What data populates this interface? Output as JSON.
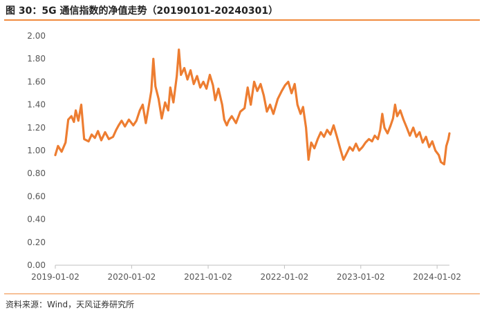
{
  "title": "图 30：5G 通信指数的净值走势（20190101-20240301）",
  "source": "资料来源：Wind，天风证券研究所",
  "colors": {
    "line": "#ed7d31",
    "accent_rule": "#f08a3c",
    "axis": "#bfbfbf",
    "text": "#555555"
  },
  "chart_data": {
    "type": "line",
    "title": "",
    "xlabel": "",
    "ylabel": "",
    "ylim": [
      0,
      2.0
    ],
    "xlim": [
      "2019-01-02",
      "2024-03-01"
    ],
    "yticks": [
      "0.00",
      "0.20",
      "0.40",
      "0.60",
      "0.80",
      "1.00",
      "1.20",
      "1.40",
      "1.60",
      "1.80",
      "2.00"
    ],
    "xticks": [
      "2019-01-02",
      "2020-01-02",
      "2021-01-02",
      "2022-01-02",
      "2023-01-02",
      "2024-01-02"
    ],
    "grid": false,
    "legend": "none",
    "series": [
      {
        "name": "",
        "points": [
          [
            "2019-01-02",
            0.96
          ],
          [
            "2019-01-15",
            1.04
          ],
          [
            "2019-02-01",
            0.99
          ],
          [
            "2019-02-20",
            1.07
          ],
          [
            "2019-03-05",
            1.27
          ],
          [
            "2019-03-20",
            1.3
          ],
          [
            "2019-04-01",
            1.25
          ],
          [
            "2019-04-10",
            1.35
          ],
          [
            "2019-04-22",
            1.26
          ],
          [
            "2019-05-06",
            1.4
          ],
          [
            "2019-05-20",
            1.1
          ],
          [
            "2019-06-10",
            1.08
          ],
          [
            "2019-06-25",
            1.14
          ],
          [
            "2019-07-10",
            1.11
          ],
          [
            "2019-07-25",
            1.17
          ],
          [
            "2019-08-10",
            1.09
          ],
          [
            "2019-08-28",
            1.16
          ],
          [
            "2019-09-15",
            1.1
          ],
          [
            "2019-10-05",
            1.12
          ],
          [
            "2019-10-20",
            1.18
          ],
          [
            "2019-11-01",
            1.22
          ],
          [
            "2019-11-15",
            1.26
          ],
          [
            "2019-12-01",
            1.21
          ],
          [
            "2019-12-20",
            1.27
          ],
          [
            "2020-01-10",
            1.22
          ],
          [
            "2020-01-25",
            1.26
          ],
          [
            "2020-02-10",
            1.35
          ],
          [
            "2020-02-24",
            1.4
          ],
          [
            "2020-03-10",
            1.24
          ],
          [
            "2020-03-25",
            1.4
          ],
          [
            "2020-04-05",
            1.52
          ],
          [
            "2020-04-15",
            1.8
          ],
          [
            "2020-04-25",
            1.56
          ],
          [
            "2020-05-10",
            1.45
          ],
          [
            "2020-05-25",
            1.28
          ],
          [
            "2020-06-10",
            1.42
          ],
          [
            "2020-06-25",
            1.35
          ],
          [
            "2020-07-05",
            1.55
          ],
          [
            "2020-07-20",
            1.42
          ],
          [
            "2020-08-05",
            1.65
          ],
          [
            "2020-08-15",
            1.88
          ],
          [
            "2020-08-25",
            1.66
          ],
          [
            "2020-09-10",
            1.72
          ],
          [
            "2020-09-25",
            1.62
          ],
          [
            "2020-10-10",
            1.7
          ],
          [
            "2020-10-25",
            1.58
          ],
          [
            "2020-11-10",
            1.65
          ],
          [
            "2020-11-25",
            1.55
          ],
          [
            "2020-12-10",
            1.6
          ],
          [
            "2020-12-25",
            1.54
          ],
          [
            "2021-01-10",
            1.66
          ],
          [
            "2021-01-25",
            1.57
          ],
          [
            "2021-02-05",
            1.44
          ],
          [
            "2021-02-20",
            1.54
          ],
          [
            "2021-03-10",
            1.4
          ],
          [
            "2021-03-20",
            1.27
          ],
          [
            "2021-04-01",
            1.22
          ],
          [
            "2021-04-10",
            1.26
          ],
          [
            "2021-04-25",
            1.3
          ],
          [
            "2021-05-15",
            1.24
          ],
          [
            "2021-06-05",
            1.34
          ],
          [
            "2021-06-25",
            1.37
          ],
          [
            "2021-07-10",
            1.55
          ],
          [
            "2021-07-25",
            1.4
          ],
          [
            "2021-08-10",
            1.6
          ],
          [
            "2021-08-25",
            1.52
          ],
          [
            "2021-09-10",
            1.58
          ],
          [
            "2021-09-25",
            1.48
          ],
          [
            "2021-10-10",
            1.34
          ],
          [
            "2021-10-25",
            1.4
          ],
          [
            "2021-11-10",
            1.32
          ],
          [
            "2021-12-01",
            1.45
          ],
          [
            "2021-12-20",
            1.52
          ],
          [
            "2022-01-05",
            1.57
          ],
          [
            "2022-01-20",
            1.6
          ],
          [
            "2022-02-05",
            1.5
          ],
          [
            "2022-02-20",
            1.58
          ],
          [
            "2022-03-05",
            1.4
          ],
          [
            "2022-03-20",
            1.32
          ],
          [
            "2022-04-01",
            1.38
          ],
          [
            "2022-04-15",
            1.2
          ],
          [
            "2022-04-27",
            0.92
          ],
          [
            "2022-05-10",
            1.07
          ],
          [
            "2022-05-25",
            1.02
          ],
          [
            "2022-06-10",
            1.1
          ],
          [
            "2022-06-25",
            1.16
          ],
          [
            "2022-07-10",
            1.12
          ],
          [
            "2022-07-25",
            1.18
          ],
          [
            "2022-08-10",
            1.14
          ],
          [
            "2022-08-25",
            1.22
          ],
          [
            "2022-09-10",
            1.12
          ],
          [
            "2022-09-25",
            1.02
          ],
          [
            "2022-10-11",
            0.92
          ],
          [
            "2022-10-25",
            0.97
          ],
          [
            "2022-11-10",
            1.03
          ],
          [
            "2022-11-25",
            1.0
          ],
          [
            "2022-12-10",
            1.06
          ],
          [
            "2022-12-25",
            1.0
          ],
          [
            "2023-01-10",
            1.03
          ],
          [
            "2023-01-25",
            1.07
          ],
          [
            "2023-02-10",
            1.1
          ],
          [
            "2023-02-25",
            1.08
          ],
          [
            "2023-03-10",
            1.13
          ],
          [
            "2023-03-25",
            1.1
          ],
          [
            "2023-04-05",
            1.18
          ],
          [
            "2023-04-15",
            1.32
          ],
          [
            "2023-04-25",
            1.2
          ],
          [
            "2023-05-10",
            1.15
          ],
          [
            "2023-05-25",
            1.22
          ],
          [
            "2023-06-05",
            1.28
          ],
          [
            "2023-06-15",
            1.4
          ],
          [
            "2023-06-25",
            1.3
          ],
          [
            "2023-07-10",
            1.35
          ],
          [
            "2023-07-25",
            1.27
          ],
          [
            "2023-08-10",
            1.2
          ],
          [
            "2023-08-25",
            1.13
          ],
          [
            "2023-09-10",
            1.2
          ],
          [
            "2023-09-25",
            1.12
          ],
          [
            "2023-10-10",
            1.16
          ],
          [
            "2023-10-25",
            1.07
          ],
          [
            "2023-11-10",
            1.12
          ],
          [
            "2023-11-25",
            1.03
          ],
          [
            "2023-12-10",
            1.08
          ],
          [
            "2023-12-25",
            1.0
          ],
          [
            "2024-01-10",
            0.96
          ],
          [
            "2024-01-20",
            0.9
          ],
          [
            "2024-02-05",
            0.88
          ],
          [
            "2024-02-15",
            1.04
          ],
          [
            "2024-02-25",
            1.1
          ],
          [
            "2024-03-01",
            1.15
          ]
        ]
      }
    ]
  }
}
